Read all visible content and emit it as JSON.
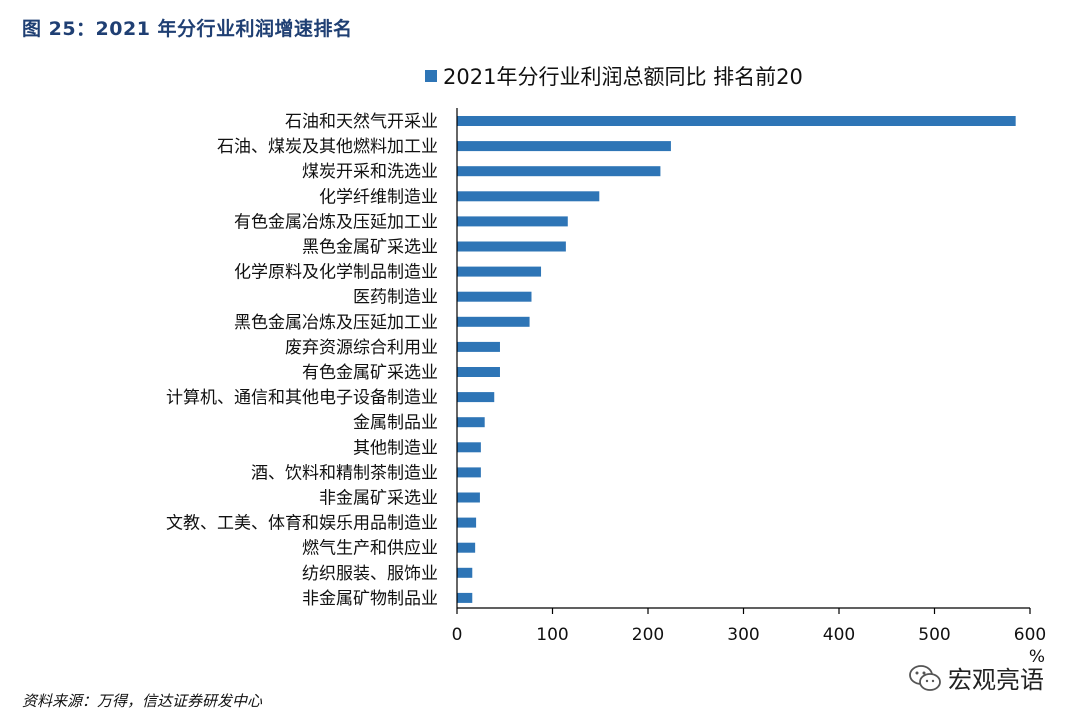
{
  "figure": {
    "title": "图 25：2021 年分行业利润增速排名",
    "source": "资料来源：万得，信达证券研发中心",
    "watermark": "宏观亮语"
  },
  "colors": {
    "bar": "#2e75b6",
    "axis": "#000000",
    "title": "#1f3f73"
  },
  "chart_data": {
    "type": "bar",
    "orientation": "horizontal",
    "title": "",
    "legend": "2021年分行业利润总额同比 排名前20",
    "legend_position": "top",
    "xlabel": "%",
    "ylabel": "",
    "xlim": [
      0,
      600
    ],
    "xticks": [
      0,
      100,
      200,
      300,
      400,
      500,
      600
    ],
    "grid": false,
    "series": [
      {
        "name": "2021年分行业利润总额同比 排名前20",
        "categories": [
          "石油和天然气开采业",
          "石油、煤炭及其他燃料加工业",
          "煤炭开采和洗选业",
          "化学纤维制造业",
          "有色金属冶炼及压延加工业",
          "黑色金属矿采选业",
          "化学原料及化学制品制造业",
          "医药制造业",
          "黑色金属冶炼及压延加工业",
          "废弃资源综合利用业",
          "有色金属矿采选业",
          "计算机、通信和其他电子设备制造业",
          "金属制品业",
          "其他制造业",
          "酒、饮料和精制茶制造业",
          "非金属矿采选业",
          "文教、工美、体育和娱乐用品制造业",
          "燃气生产和供应业",
          "纺织服装、服饰业",
          "非金属矿物制品业"
        ],
        "values": [
          585,
          224,
          213,
          149,
          116,
          114,
          88,
          78,
          76,
          45,
          45,
          39,
          29,
          25,
          25,
          24,
          20,
          19,
          16,
          16
        ]
      }
    ]
  }
}
